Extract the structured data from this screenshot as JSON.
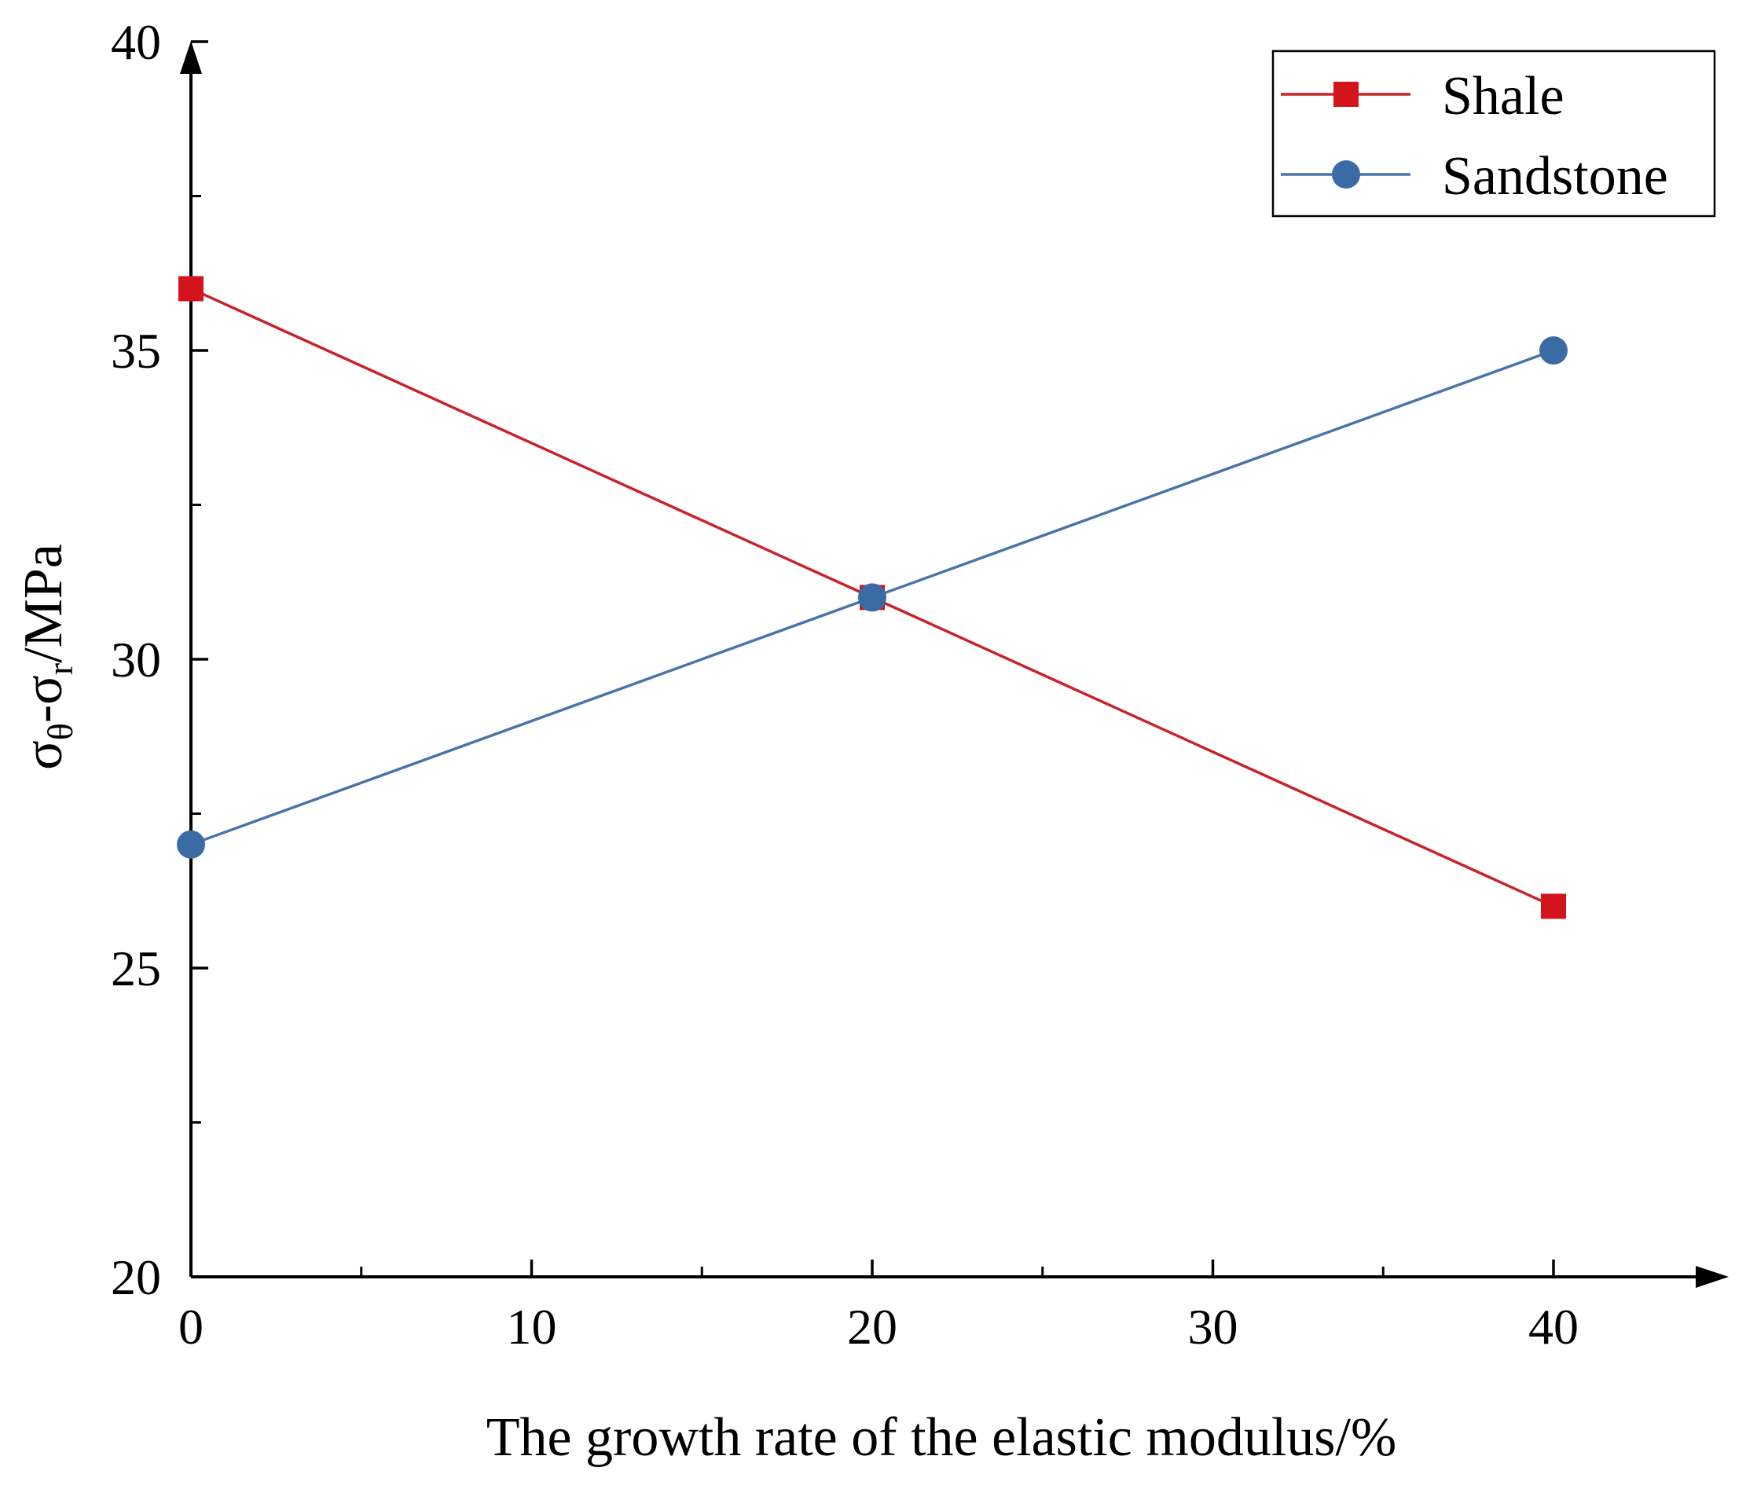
{
  "chart_data": {
    "type": "line",
    "title": "",
    "xlabel": "The growth rate of the elastic modulus/%",
    "ylabel": {
      "sigma1": "σ",
      "sub1": "θ",
      "dash": "-",
      "sigma2": "σ",
      "sub2": "r",
      "unit": "/MPa"
    },
    "xlim": [
      0,
      45
    ],
    "ylim": [
      20,
      40
    ],
    "x_ticks": [
      0,
      10,
      20,
      30,
      40
    ],
    "x_tick_labels": [
      "0",
      "10",
      "20",
      "30",
      "40"
    ],
    "x_minor_ticks": [
      5,
      15,
      25,
      35
    ],
    "y_ticks": [
      20,
      25,
      30,
      35,
      40
    ],
    "y_tick_labels": [
      "20",
      "25",
      "30",
      "35",
      "40"
    ],
    "y_minor_ticks": [
      22.5,
      27.5,
      32.5,
      37.5
    ],
    "grid": false,
    "legend_position": "top-right",
    "series": [
      {
        "name": "Shale",
        "marker": "square",
        "color": "#d4141c",
        "line_color": "#c8232b",
        "x": [
          0,
          20,
          40
        ],
        "y": [
          36,
          31,
          26
        ]
      },
      {
        "name": "Sandstone",
        "marker": "circle",
        "color": "#3b6ba5",
        "line_color": "#4a74a8",
        "x": [
          0,
          20,
          40
        ],
        "y": [
          27,
          31,
          35
        ]
      }
    ]
  }
}
